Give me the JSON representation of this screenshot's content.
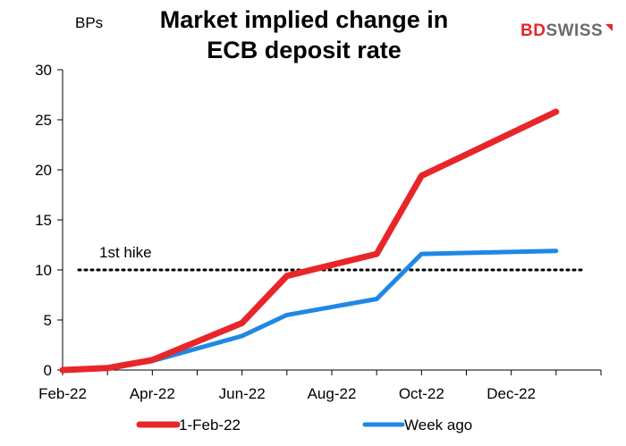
{
  "logo": {
    "part1": "BD",
    "part2": "SWISS",
    "accent_color": "#e8262a",
    "gray_color": "#6b6b6b"
  },
  "chart_data": {
    "type": "line",
    "title_line1": "Market implied change in",
    "title_line2": "ECB deposit rate",
    "ylabel": "BPs",
    "xlabel": "",
    "ylim": [
      0,
      30
    ],
    "yticks": [
      0,
      5,
      10,
      15,
      20,
      25,
      30
    ],
    "x_range": [
      "2022-02",
      "2023-02"
    ],
    "x_tick_labels": [
      "Feb-22",
      "Apr-22",
      "Jun-22",
      "Aug-22",
      "Oct-22",
      "Dec-22"
    ],
    "x_tick_positions": [
      "2022-02",
      "2022-03",
      "2022-04",
      "2022-05",
      "2022-06",
      "2022-07",
      "2022-08",
      "2022-09",
      "2022-10",
      "2022-11",
      "2022-12",
      "2023-01",
      "2023-02"
    ],
    "grid": false,
    "legend_position": "bottom",
    "annotation": {
      "label": "1st hike",
      "y": 10,
      "style": "dotted"
    },
    "series": [
      {
        "name": "1-Feb-22",
        "color": "#e8262a",
        "points": [
          {
            "x": "2022-02",
            "y": 0
          },
          {
            "x": "2022-03",
            "y": 0.2
          },
          {
            "x": "2022-04",
            "y": 1.0
          },
          {
            "x": "2022-06",
            "y": 4.7
          },
          {
            "x": "2022-07",
            "y": 9.4
          },
          {
            "x": "2022-09",
            "y": 11.6
          },
          {
            "x": "2022-10",
            "y": 19.4
          },
          {
            "x": "2023-01",
            "y": 25.8
          }
        ]
      },
      {
        "name": "Week ago",
        "color": "#1f88e5",
        "points": [
          {
            "x": "2022-02",
            "y": 0
          },
          {
            "x": "2022-03",
            "y": 0.2
          },
          {
            "x": "2022-04",
            "y": 0.9
          },
          {
            "x": "2022-06",
            "y": 3.4
          },
          {
            "x": "2022-07",
            "y": 5.5
          },
          {
            "x": "2022-09",
            "y": 7.1
          },
          {
            "x": "2022-10",
            "y": 11.6
          },
          {
            "x": "2023-01",
            "y": 11.9
          }
        ]
      }
    ]
  }
}
